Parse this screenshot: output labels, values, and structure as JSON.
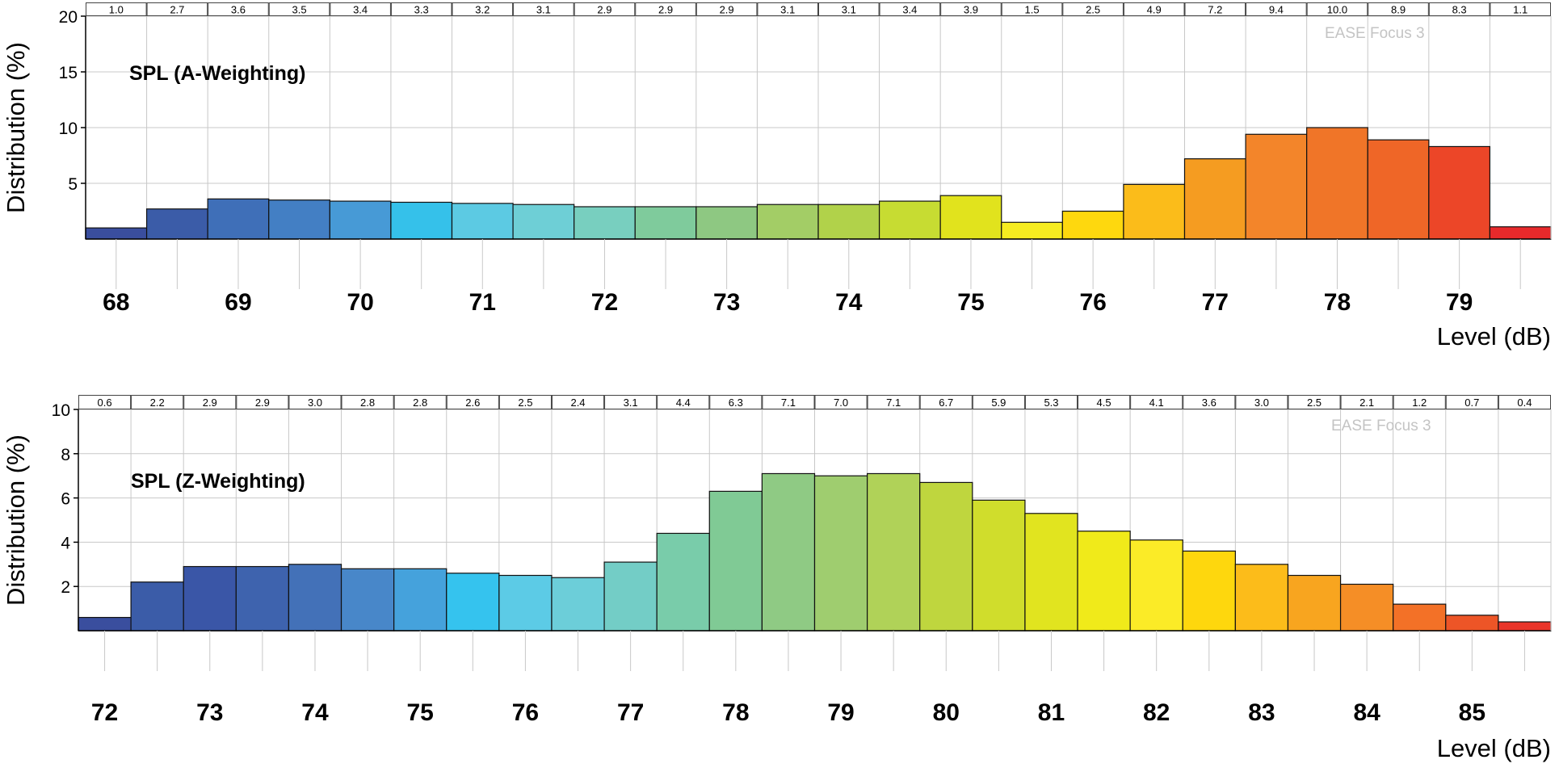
{
  "chart_data": [
    {
      "type": "bar",
      "title": "SPL (A-Weighting)",
      "watermark": "EASE Focus 3",
      "xlabel": "Level (dB)",
      "ylabel": "Distribution (%)",
      "ylim": [
        0,
        20
      ],
      "yticks": [
        5,
        10,
        15,
        20
      ],
      "xticks": [
        68,
        69,
        70,
        71,
        72,
        73,
        74,
        75,
        76,
        77,
        78,
        79
      ],
      "x_bins_start": 67.75,
      "bin_width": 0.5,
      "values": [
        1.0,
        2.7,
        3.6,
        3.5,
        3.4,
        3.3,
        3.2,
        3.1,
        2.9,
        2.9,
        2.9,
        3.1,
        3.1,
        3.4,
        3.9,
        1.5,
        2.5,
        4.9,
        7.2,
        9.4,
        10.0,
        8.9,
        8.3,
        1.1
      ],
      "value_labels": [
        "1.0",
        "2.7",
        "3.6",
        "3.5",
        "3.4",
        "3.3",
        "3.2",
        "3.1",
        "2.9",
        "2.9",
        "2.9",
        "3.1",
        "3.1",
        "3.4",
        "3.9",
        "1.5",
        "2.5",
        "4.9",
        "7.2",
        "9.4",
        "10.0",
        "8.9",
        "8.3",
        "1.1"
      ],
      "colors": [
        "#3a4e9e",
        "#3b5ca8",
        "#3f6fb8",
        "#437fc4",
        "#479ad6",
        "#35c1ea",
        "#5ccae3",
        "#6ecfd6",
        "#78cfbf",
        "#7fcb9c",
        "#8ec882",
        "#a3cd66",
        "#b1d24a",
        "#c7dc32",
        "#e1e31d",
        "#f6ec20",
        "#fed80e",
        "#fbbc1a",
        "#f59c21",
        "#f3852a",
        "#f07528",
        "#ef6627",
        "#ec4628",
        "#e8292b"
      ],
      "grid": true,
      "legend": "none"
    },
    {
      "type": "bar",
      "title": "SPL (Z-Weighting)",
      "watermark": "EASE Focus 3",
      "xlabel": "Level (dB)",
      "ylabel": "Distribution (%)",
      "ylim": [
        0,
        10
      ],
      "yticks": [
        2,
        4,
        6,
        8,
        10
      ],
      "xticks": [
        72,
        73,
        74,
        75,
        76,
        77,
        78,
        79,
        80,
        81,
        82,
        83,
        84,
        85
      ],
      "x_bins_start": 71.75,
      "bin_width": 0.5,
      "values": [
        0.6,
        2.2,
        2.9,
        2.9,
        3.0,
        2.8,
        2.8,
        2.6,
        2.5,
        2.4,
        3.1,
        4.4,
        6.3,
        7.1,
        7.0,
        7.1,
        6.7,
        5.9,
        5.3,
        4.5,
        4.1,
        3.6,
        3.0,
        2.5,
        2.1,
        1.2,
        0.7,
        0.4
      ],
      "value_labels": [
        "0.6",
        "2.2",
        "2.9",
        "2.9",
        "3.0",
        "2.8",
        "2.8",
        "2.6",
        "2.5",
        "2.4",
        "3.1",
        "4.4",
        "6.3",
        "7.1",
        "7.0",
        "7.1",
        "6.7",
        "5.9",
        "5.3",
        "4.5",
        "4.1",
        "3.6",
        "3.0",
        "2.5",
        "2.1",
        "1.2",
        "0.7",
        "0.4"
      ],
      "colors": [
        "#3a4e9e",
        "#3b5ca8",
        "#3a56a7",
        "#3e63ae",
        "#4371b8",
        "#4887c9",
        "#45a2dc",
        "#35c3ee",
        "#5ccbe6",
        "#6cced9",
        "#73cdc6",
        "#79ccaa",
        "#80ca95",
        "#8fca84",
        "#9fcd6f",
        "#b0d258",
        "#bfd63e",
        "#d0dd2c",
        "#e1e41f",
        "#f0ea1a",
        "#fbeb27",
        "#fed70d",
        "#fcbc1a",
        "#f8a51f",
        "#f58e26",
        "#f37127",
        "#ed5527",
        "#e9352a"
      ],
      "grid": true,
      "legend": "none"
    }
  ]
}
